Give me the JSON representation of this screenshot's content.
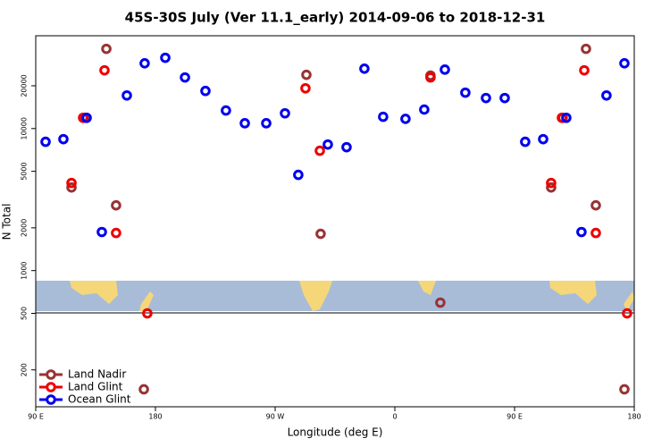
{
  "chart_data": {
    "type": "scatter",
    "title": "45S-30S July (Ver 11.1_early)   2014-09-06 to 2018-12-31",
    "x_label": "Longitude (deg E)",
    "y_label": "N Total",
    "xlim": [
      90,
      540
    ],
    "xticks": [
      {
        "value": 90,
        "label": "90 E"
      },
      {
        "value": 180,
        "label": "180"
      },
      {
        "value": 270,
        "label": "90 W"
      },
      {
        "value": 360,
        "label": "0"
      },
      {
        "value": 450,
        "label": "90 E"
      },
      {
        "value": 540,
        "label": "180"
      }
    ],
    "ylim": [
      110,
      45000
    ],
    "log_y": true,
    "yticks": [
      200,
      500,
      1000,
      2000,
      5000,
      10000,
      20000
    ],
    "legend": "bottom-left",
    "series": [
      {
        "name": "Land Nadir",
        "color": "#993333",
        "x": [
          116.9,
          126.3,
          143.1,
          150.4,
          171.3,
          293.5,
          304.2,
          386.8,
          394.2,
          477.5,
          486.2,
          503.7,
          511.1,
          532.6
        ],
        "values": [
          3850,
          11900,
          36400,
          2880,
          146,
          23900,
          1815,
          23600,
          595,
          3850,
          11900,
          36400,
          2880,
          146
        ]
      },
      {
        "name": "Land Glint",
        "color": "#ee0000",
        "x": [
          116.9,
          125.6,
          141.7,
          150.4,
          173.9,
          292.8,
          303.6,
          386.8,
          477.5,
          485.6,
          502.4,
          511.1,
          534.6
        ],
        "values": [
          4140,
          11900,
          25700,
          1840,
          500,
          19200,
          6980,
          22900,
          4140,
          11900,
          25700,
          1840,
          500
        ]
      },
      {
        "name": "Ocean Glint",
        "color": "#0000ee",
        "x": [
          97.4,
          110.8,
          128.3,
          139.7,
          158.5,
          171.9,
          187.4,
          202.2,
          217.6,
          233.0,
          247.2,
          263.3,
          277.4,
          287.4,
          309.6,
          323.7,
          337.1,
          351.2,
          368.0,
          382.1,
          397.6,
          413.0,
          428.5,
          442.6,
          458.0,
          471.5,
          488.9,
          500.3,
          519.1,
          532.6
        ],
        "values": [
          8070,
          8420,
          11900,
          1870,
          17100,
          28800,
          31500,
          22900,
          18400,
          13400,
          10900,
          10900,
          12800,
          4720,
          7720,
          7390,
          26400,
          12100,
          11700,
          13600,
          26000,
          17900,
          16400,
          16400,
          8070,
          8420,
          11900,
          1870,
          17100,
          28800
        ]
      }
    ]
  }
}
